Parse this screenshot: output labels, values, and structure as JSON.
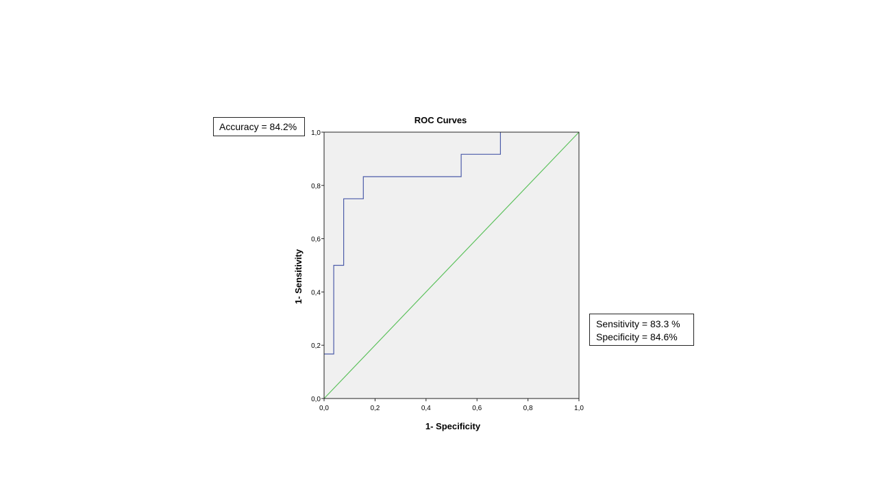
{
  "annotations": {
    "accuracy": "Accuracy = 84.2%",
    "sensitivity": "Sensitivity = 83.3 %",
    "specificity": "Specificity = 84.6%"
  },
  "chart_data": {
    "type": "line",
    "title": "ROC Curves",
    "xlabel": "1- Specificity",
    "ylabel": "1- Sensitivity",
    "xlim": [
      0,
      1
    ],
    "ylim": [
      0,
      1
    ],
    "x_ticks": [
      "0,0",
      "0,2",
      "0,4",
      "0,6",
      "0,8",
      "1,0"
    ],
    "y_ticks": [
      "0,0",
      "0,2",
      "0,4",
      "0,6",
      "0,8",
      "1,0"
    ],
    "grid": false,
    "background_color": "#f0f0f0",
    "series": [
      {
        "color": "#4a5aa8",
        "step": true,
        "x": [
          0,
          0.038,
          0.038,
          0.077,
          0.077,
          0.154,
          0.154,
          0.538,
          0.538,
          0.692,
          0.692
        ],
        "y": [
          0.167,
          0.167,
          0.5,
          0.5,
          0.75,
          0.75,
          0.833,
          0.833,
          0.917,
          0.917,
          1.0
        ]
      },
      {
        "color": "#5cc15c",
        "step": false,
        "x": [
          0,
          1
        ],
        "y": [
          0,
          1
        ]
      }
    ]
  }
}
